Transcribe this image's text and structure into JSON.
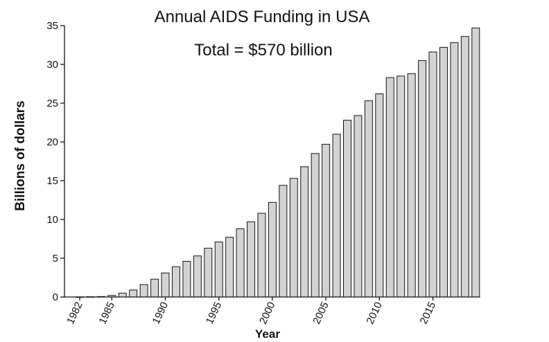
{
  "chart_data": {
    "type": "bar",
    "title": "Annual AIDS Funding in USA",
    "subtitle": "Total = $570 billion",
    "xlabel": "Year",
    "ylabel": "Billions of dollars",
    "ylim": [
      0,
      35
    ],
    "yticks": [
      0,
      5,
      10,
      15,
      20,
      25,
      30,
      35
    ],
    "xticks": [
      1982,
      1985,
      1990,
      1995,
      2000,
      2005,
      2010,
      2015
    ],
    "grid": false,
    "bar_color": "#d3d3d3",
    "edge_color": "#111111",
    "categories": [
      1982,
      1983,
      1984,
      1985,
      1986,
      1987,
      1988,
      1989,
      1990,
      1991,
      1992,
      1993,
      1994,
      1995,
      1996,
      1997,
      1998,
      1999,
      2000,
      2001,
      2002,
      2003,
      2004,
      2005,
      2006,
      2007,
      2008,
      2009,
      2010,
      2011,
      2012,
      2013,
      2014,
      2015,
      2016,
      2017,
      2018,
      2019
    ],
    "values": [
      0.01,
      0.03,
      0.06,
      0.2,
      0.5,
      0.9,
      1.6,
      2.3,
      3.1,
      3.9,
      4.6,
      5.3,
      6.3,
      7.1,
      7.7,
      8.8,
      9.7,
      10.8,
      12.2,
      14.4,
      15.3,
      16.8,
      18.5,
      19.7,
      21.0,
      22.8,
      23.4,
      25.3,
      26.2,
      28.3,
      28.5,
      28.8,
      30.5,
      31.6,
      32.2,
      32.8,
      33.6,
      34.7
    ]
  }
}
